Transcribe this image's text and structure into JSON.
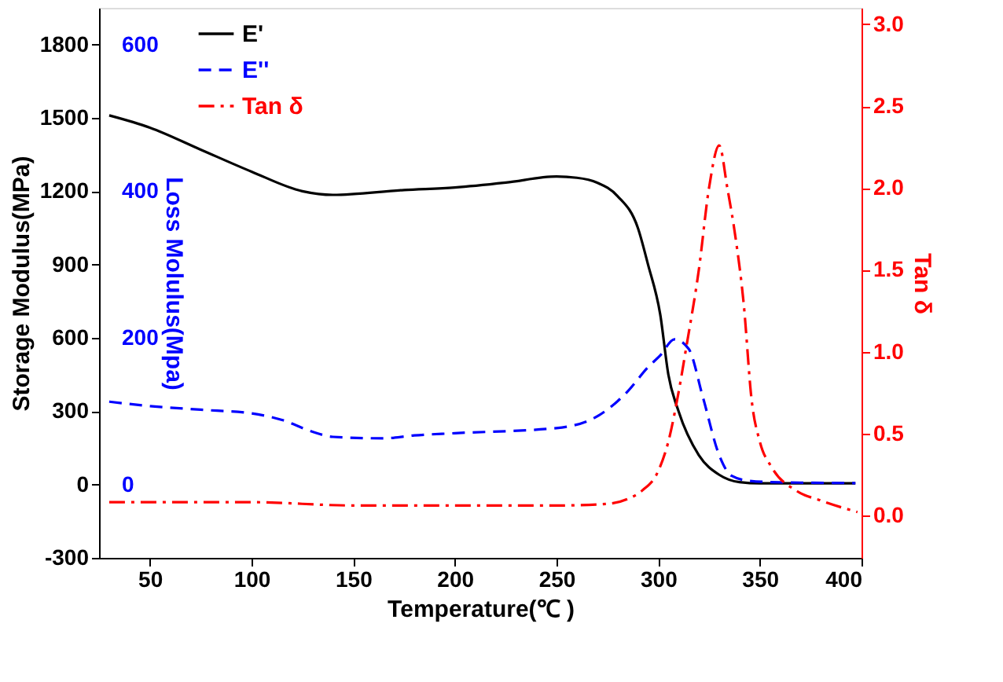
{
  "chart_data": {
    "type": "line",
    "xlabel": "Temperature(℃ )",
    "ylabel": "Storage Modulus(MPa)",
    "y2label": "Tan δ",
    "y3label": "Loss Molulus(Mpa)",
    "xlim": [
      25,
      400
    ],
    "xticks": [
      50,
      100,
      150,
      200,
      250,
      300,
      350,
      400
    ],
    "ylim": [
      -300,
      1950
    ],
    "yticks": [
      -300,
      0,
      300,
      600,
      900,
      1200,
      1500,
      1800
    ],
    "y2lim": [
      -0.26,
      3.1
    ],
    "y2ticks": [
      {
        "value": 0,
        "label": "0.0"
      },
      {
        "value": 0.5,
        "label": "0.5"
      },
      {
        "value": 1,
        "label": "1.0"
      },
      {
        "value": 1.5,
        "label": "1.5"
      },
      {
        "value": 2,
        "label": "2.0"
      },
      {
        "value": 2.5,
        "label": "2.5"
      },
      {
        "value": 3,
        "label": "3.0"
      }
    ],
    "y3lim": [
      -100,
      650
    ],
    "y3ticks": [
      0,
      200,
      400,
      600
    ],
    "legend": "top left",
    "grid": false,
    "series": [
      {
        "name": "E'",
        "color": "#000000",
        "line_style": "solid",
        "axis": "y",
        "x": [
          30,
          50,
          75,
          100,
          125,
          140,
          175,
          200,
          225,
          250,
          260,
          270,
          280,
          290,
          295,
          301,
          305,
          310,
          320,
          330,
          340,
          350,
          397
        ],
        "values": [
          1510,
          1460,
          1370,
          1280,
          1200,
          1185,
          1205,
          1215,
          1235,
          1260,
          1255,
          1235,
          1180,
          1050,
          900,
          696,
          450,
          300,
          120,
          40,
          10,
          5,
          5
        ]
      },
      {
        "name": "E''",
        "color": "#0000ff",
        "line_style": "dashed",
        "axis": "y3",
        "x": [
          30,
          50,
          75,
          100,
          115,
          130,
          140,
          165,
          180,
          200,
          250,
          270,
          285,
          295,
          301,
          308,
          315,
          322,
          330,
          336,
          345,
          360,
          397
        ],
        "values": [
          113,
          107,
          102,
          97,
          88,
          72,
          65,
          63,
          67,
          70,
          77,
          93,
          127,
          160,
          176,
          198,
          185,
          119,
          40,
          12,
          5,
          3,
          2
        ]
      },
      {
        "name": "Tan δ",
        "color": "#ff0000",
        "line_style": "dashdot",
        "axis": "y2",
        "x": [
          30,
          100,
          150,
          200,
          250,
          275,
          285,
          292,
          300,
          305,
          310,
          314,
          320,
          325,
          330,
          334,
          338,
          342,
          346,
          350,
          356,
          368,
          380,
          398
        ],
        "values": [
          0.08,
          0.08,
          0.06,
          0.06,
          0.06,
          0.07,
          0.1,
          0.15,
          0.27,
          0.45,
          0.75,
          1.04,
          1.5,
          2.0,
          2.26,
          2.0,
          1.7,
          1.3,
          0.7,
          0.45,
          0.29,
          0.15,
          0.09,
          0.02
        ]
      }
    ]
  }
}
